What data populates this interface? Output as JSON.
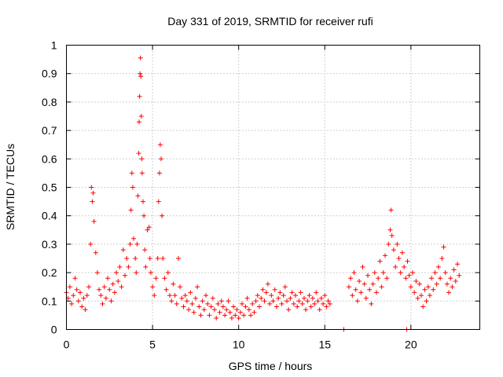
{
  "chart_data": {
    "type": "scatter",
    "title": "Day 331 of 2019, SRMTID for receiver rufi",
    "xlabel": "GPS time / hours",
    "ylabel": "SRMTID / TECUs",
    "xlim": [
      0,
      24.0
    ],
    "ylim": [
      0,
      1
    ],
    "xticks": [
      0,
      5,
      10,
      15,
      20
    ],
    "xtick_labels": [
      "0",
      "5",
      "10",
      "15",
      "20"
    ],
    "yticks": [
      0,
      0.1,
      0.2,
      0.3,
      0.4,
      0.5,
      0.6,
      0.7,
      0.8,
      0.9,
      1
    ],
    "ytick_labels": [
      "0",
      "0.1",
      "0.2",
      "0.3",
      "0.4",
      "0.5",
      "0.6",
      "0.7",
      "0.8",
      "0.9",
      "1"
    ],
    "grid": true,
    "marker": "+",
    "marker_color": "#ff0000",
    "series": [
      {
        "name": "SRMTID",
        "points": [
          [
            0.0,
            0.13
          ],
          [
            0.1,
            0.11
          ],
          [
            0.2,
            0.15
          ],
          [
            0.3,
            0.09
          ],
          [
            0.4,
            0.12
          ],
          [
            0.5,
            0.18
          ],
          [
            0.6,
            0.14
          ],
          [
            0.7,
            0.1
          ],
          [
            0.8,
            0.13
          ],
          [
            0.9,
            0.08
          ],
          [
            1.0,
            0.11
          ],
          [
            1.1,
            0.07
          ],
          [
            1.2,
            0.12
          ],
          [
            1.3,
            0.15
          ],
          [
            1.4,
            0.3
          ],
          [
            1.45,
            0.5
          ],
          [
            1.5,
            0.45
          ],
          [
            1.55,
            0.48
          ],
          [
            1.6,
            0.38
          ],
          [
            1.7,
            0.27
          ],
          [
            1.8,
            0.2
          ],
          [
            1.9,
            0.14
          ],
          [
            2.0,
            0.12
          ],
          [
            2.1,
            0.09
          ],
          [
            2.2,
            0.15
          ],
          [
            2.3,
            0.11
          ],
          [
            2.4,
            0.18
          ],
          [
            2.5,
            0.14
          ],
          [
            2.6,
            0.1
          ],
          [
            2.7,
            0.16
          ],
          [
            2.8,
            0.13
          ],
          [
            2.9,
            0.2
          ],
          [
            3.0,
            0.17
          ],
          [
            3.1,
            0.22
          ],
          [
            3.2,
            0.15
          ],
          [
            3.3,
            0.28
          ],
          [
            3.4,
            0.19
          ],
          [
            3.5,
            0.25
          ],
          [
            3.6,
            0.22
          ],
          [
            3.7,
            0.3
          ],
          [
            3.75,
            0.42
          ],
          [
            3.8,
            0.55
          ],
          [
            3.85,
            0.5
          ],
          [
            3.9,
            0.32
          ],
          [
            4.0,
            0.25
          ],
          [
            4.05,
            0.2
          ],
          [
            4.1,
            0.3
          ],
          [
            4.15,
            0.47
          ],
          [
            4.2,
            0.62
          ],
          [
            4.22,
            0.73
          ],
          [
            4.25,
            0.82
          ],
          [
            4.27,
            0.9
          ],
          [
            4.3,
            0.955
          ],
          [
            4.32,
            0.89
          ],
          [
            4.35,
            0.75
          ],
          [
            4.38,
            0.6
          ],
          [
            4.4,
            0.55
          ],
          [
            4.45,
            0.45
          ],
          [
            4.5,
            0.4
          ],
          [
            4.55,
            0.28
          ],
          [
            4.6,
            0.22
          ],
          [
            4.7,
            0.35
          ],
          [
            4.8,
            0.36
          ],
          [
            4.85,
            0.25
          ],
          [
            4.9,
            0.2
          ],
          [
            5.0,
            0.15
          ],
          [
            5.1,
            0.12
          ],
          [
            5.2,
            0.18
          ],
          [
            5.3,
            0.25
          ],
          [
            5.35,
            0.45
          ],
          [
            5.4,
            0.55
          ],
          [
            5.45,
            0.65
          ],
          [
            5.5,
            0.6
          ],
          [
            5.55,
            0.4
          ],
          [
            5.6,
            0.25
          ],
          [
            5.7,
            0.18
          ],
          [
            5.8,
            0.14
          ],
          [
            5.9,
            0.2
          ],
          [
            6.0,
            0.12
          ],
          [
            6.1,
            0.1
          ],
          [
            6.2,
            0.16
          ],
          [
            6.3,
            0.12
          ],
          [
            6.4,
            0.09
          ],
          [
            6.5,
            0.25
          ],
          [
            6.6,
            0.15
          ],
          [
            6.7,
            0.11
          ],
          [
            6.8,
            0.08
          ],
          [
            6.9,
            0.12
          ],
          [
            7.0,
            0.1
          ],
          [
            7.1,
            0.07
          ],
          [
            7.2,
            0.13
          ],
          [
            7.3,
            0.09
          ],
          [
            7.4,
            0.06
          ],
          [
            7.5,
            0.11
          ],
          [
            7.6,
            0.15
          ],
          [
            7.7,
            0.08
          ],
          [
            7.8,
            0.05
          ],
          [
            7.9,
            0.1
          ],
          [
            8.0,
            0.07
          ],
          [
            8.1,
            0.12
          ],
          [
            8.2,
            0.09
          ],
          [
            8.3,
            0.05
          ],
          [
            8.4,
            0.08
          ],
          [
            8.5,
            0.11
          ],
          [
            8.6,
            0.07
          ],
          [
            8.7,
            0.04
          ],
          [
            8.8,
            0.09
          ],
          [
            8.9,
            0.06
          ],
          [
            9.0,
            0.1
          ],
          [
            9.1,
            0.08
          ],
          [
            9.2,
            0.05
          ],
          [
            9.3,
            0.07
          ],
          [
            9.4,
            0.1
          ],
          [
            9.5,
            0.06
          ],
          [
            9.6,
            0.04
          ],
          [
            9.7,
            0.08
          ],
          [
            9.8,
            0.05
          ],
          [
            9.9,
            0.07
          ],
          [
            10.0,
            0.04
          ],
          [
            10.1,
            0.06
          ],
          [
            10.2,
            0.09
          ],
          [
            10.3,
            0.05
          ],
          [
            10.4,
            0.08
          ],
          [
            10.5,
            0.11
          ],
          [
            10.6,
            0.07
          ],
          [
            10.7,
            0.05
          ],
          [
            10.8,
            0.09
          ],
          [
            10.9,
            0.06
          ],
          [
            11.0,
            0.1
          ],
          [
            11.1,
            0.12
          ],
          [
            11.2,
            0.08
          ],
          [
            11.3,
            0.11
          ],
          [
            11.4,
            0.14
          ],
          [
            11.5,
            0.1
          ],
          [
            11.6,
            0.13
          ],
          [
            11.7,
            0.16
          ],
          [
            11.8,
            0.09
          ],
          [
            11.9,
            0.12
          ],
          [
            12.0,
            0.1
          ],
          [
            12.1,
            0.14
          ],
          [
            12.2,
            0.08
          ],
          [
            12.3,
            0.11
          ],
          [
            12.4,
            0.13
          ],
          [
            12.5,
            0.09
          ],
          [
            12.6,
            0.12
          ],
          [
            12.7,
            0.15
          ],
          [
            12.8,
            0.1
          ],
          [
            12.9,
            0.07
          ],
          [
            13.0,
            0.11
          ],
          [
            13.1,
            0.13
          ],
          [
            13.2,
            0.09
          ],
          [
            13.3,
            0.12
          ],
          [
            13.4,
            0.08
          ],
          [
            13.5,
            0.1
          ],
          [
            13.6,
            0.13
          ],
          [
            13.7,
            0.09
          ],
          [
            13.8,
            0.11
          ],
          [
            13.9,
            0.07
          ],
          [
            14.0,
            0.1
          ],
          [
            14.1,
            0.12
          ],
          [
            14.2,
            0.08
          ],
          [
            14.3,
            0.11
          ],
          [
            14.4,
            0.09
          ],
          [
            14.5,
            0.13
          ],
          [
            14.6,
            0.1
          ],
          [
            14.7,
            0.07
          ],
          [
            14.8,
            0.11
          ],
          [
            14.9,
            0.09
          ],
          [
            15.0,
            0.12
          ],
          [
            15.1,
            0.08
          ],
          [
            15.2,
            0.1
          ],
          [
            15.3,
            0.09
          ],
          [
            16.1,
            0.0
          ],
          [
            16.4,
            0.15
          ],
          [
            16.5,
            0.18
          ],
          [
            16.6,
            0.12
          ],
          [
            16.7,
            0.2
          ],
          [
            16.8,
            0.14
          ],
          [
            16.9,
            0.1
          ],
          [
            17.0,
            0.17
          ],
          [
            17.1,
            0.13
          ],
          [
            17.2,
            0.22
          ],
          [
            17.3,
            0.16
          ],
          [
            17.4,
            0.11
          ],
          [
            17.5,
            0.19
          ],
          [
            17.6,
            0.14
          ],
          [
            17.7,
            0.09
          ],
          [
            17.8,
            0.16
          ],
          [
            17.9,
            0.2
          ],
          [
            18.0,
            0.13
          ],
          [
            18.1,
            0.18
          ],
          [
            18.2,
            0.24
          ],
          [
            18.3,
            0.15
          ],
          [
            18.4,
            0.2
          ],
          [
            18.5,
            0.26
          ],
          [
            18.6,
            0.18
          ],
          [
            18.7,
            0.3
          ],
          [
            18.8,
            0.35
          ],
          [
            18.85,
            0.42
          ],
          [
            18.9,
            0.33
          ],
          [
            19.0,
            0.28
          ],
          [
            19.1,
            0.22
          ],
          [
            19.2,
            0.3
          ],
          [
            19.3,
            0.25
          ],
          [
            19.4,
            0.2
          ],
          [
            19.5,
            0.27
          ],
          [
            19.6,
            0.22
          ],
          [
            19.7,
            0.18
          ],
          [
            19.75,
            0.0
          ],
          [
            19.8,
            0.24
          ],
          [
            19.9,
            0.19
          ],
          [
            20.0,
            0.15
          ],
          [
            20.1,
            0.2
          ],
          [
            20.2,
            0.13
          ],
          [
            20.3,
            0.17
          ],
          [
            20.4,
            0.11
          ],
          [
            20.5,
            0.16
          ],
          [
            20.6,
            0.12
          ],
          [
            20.7,
            0.08
          ],
          [
            20.8,
            0.14
          ],
          [
            20.9,
            0.1
          ],
          [
            21.0,
            0.15
          ],
          [
            21.1,
            0.12
          ],
          [
            21.2,
            0.18
          ],
          [
            21.3,
            0.14
          ],
          [
            21.4,
            0.2
          ],
          [
            21.5,
            0.16
          ],
          [
            21.6,
            0.22
          ],
          [
            21.7,
            0.18
          ],
          [
            21.8,
            0.25
          ],
          [
            21.9,
            0.29
          ],
          [
            22.0,
            0.2
          ],
          [
            22.1,
            0.16
          ],
          [
            22.2,
            0.13
          ],
          [
            22.3,
            0.18
          ],
          [
            22.4,
            0.15
          ],
          [
            22.5,
            0.21
          ],
          [
            22.6,
            0.17
          ],
          [
            22.7,
            0.23
          ],
          [
            22.8,
            0.19
          ]
        ]
      }
    ]
  }
}
